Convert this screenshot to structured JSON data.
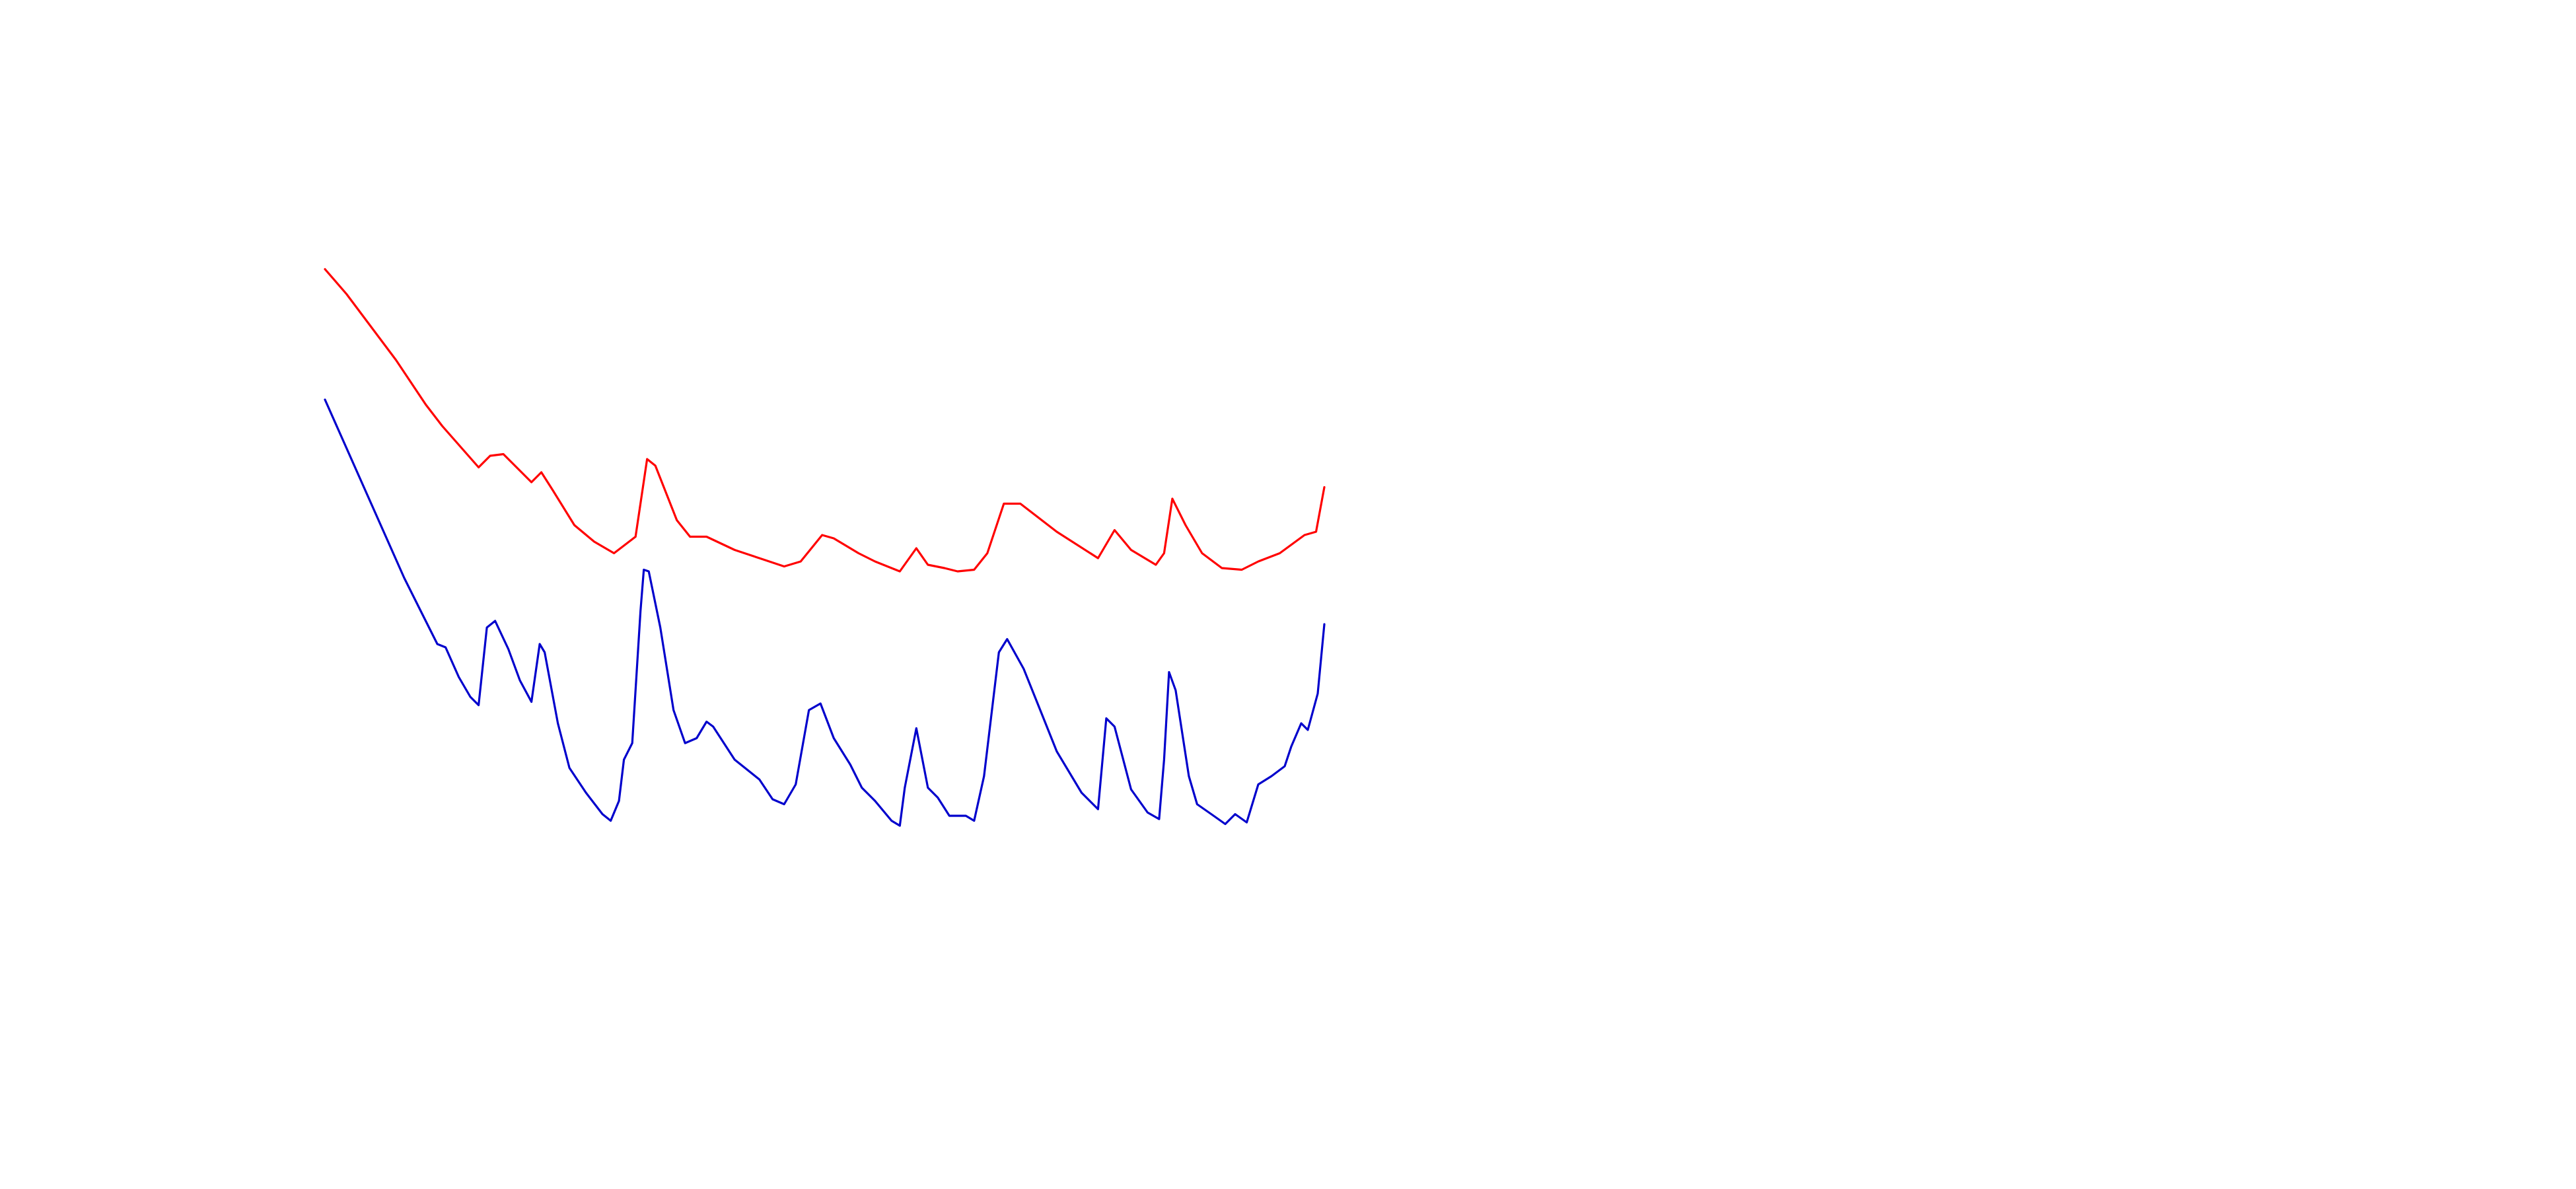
{
  "chart_data": {
    "type": "line",
    "xlim": [
      0,
      605
    ],
    "ylim": [
      0,
      450
    ],
    "series": [
      {
        "color": "#ff0000",
        "x": [
          0,
          13,
          43,
          61,
          71,
          93,
          100,
          108,
          125,
          131,
          138,
          151,
          163,
          175,
          188,
          195,
          200,
          213,
          221,
          231,
          248,
          263,
          278,
          288,
          301,
          308,
          323,
          333,
          348,
          358,
          365,
          375,
          383,
          393,
          401,
          411,
          421,
          443,
          468,
          478,
          488,
          503,
          508,
          513,
          521,
          531,
          543,
          555,
          565,
          578,
          593,
          600,
          605
        ],
        "values": [
          387,
          372,
          332,
          305,
          292,
          267,
          274,
          275,
          258,
          264,
          253,
          232,
          222,
          215,
          225,
          272,
          268,
          235,
          225,
          225,
          217,
          212,
          207,
          210,
          226,
          224,
          215,
          210,
          204,
          218,
          208,
          206,
          204,
          205,
          215,
          245,
          245,
          228,
          212,
          229,
          217,
          208,
          215,
          248,
          232,
          215,
          206,
          205,
          210,
          215,
          226,
          228,
          255
        ]
      },
      {
        "color": "#0000cc",
        "x": [
          0,
          8,
          28,
          48,
          58,
          68,
          73,
          81,
          88,
          93,
          98,
          103,
          111,
          118,
          125,
          130,
          133,
          141,
          148,
          158,
          168,
          173,
          178,
          181,
          186,
          191,
          193,
          196,
          203,
          211,
          218,
          225,
          231,
          235,
          248,
          263,
          271,
          278,
          285,
          293,
          300,
          308,
          318,
          325,
          333,
          343,
          348,
          351,
          358,
          365,
          371,
          378,
          388,
          393,
          399,
          408,
          413,
          423,
          433,
          443,
          458,
          468,
          473,
          478,
          488,
          498,
          505,
          508,
          511,
          515,
          523,
          528,
          538,
          545,
          551,
          558,
          565,
          573,
          581,
          585,
          591,
          595,
          601,
          605
        ],
        "values": [
          308,
          290,
          245,
          200,
          180,
          160,
          158,
          140,
          128,
          123,
          170,
          174,
          157,
          138,
          125,
          160,
          155,
          112,
          85,
          70,
          57,
          53,
          65,
          90,
          100,
          180,
          205,
          204,
          170,
          120,
          100,
          103,
          113,
          110,
          90,
          78,
          66,
          63,
          75,
          120,
          124,
          103,
          87,
          73,
          65,
          53,
          50,
          73,
          109,
          73,
          67,
          56,
          56,
          53,
          80,
          155,
          163,
          145,
          120,
          95,
          70,
          60,
          115,
          110,
          72,
          58,
          54,
          90,
          143,
          132,
          80,
          63,
          56,
          51,
          57,
          52,
          75,
          80,
          86,
          98,
          112,
          108,
          130,
          172
        ]
      }
    ]
  }
}
